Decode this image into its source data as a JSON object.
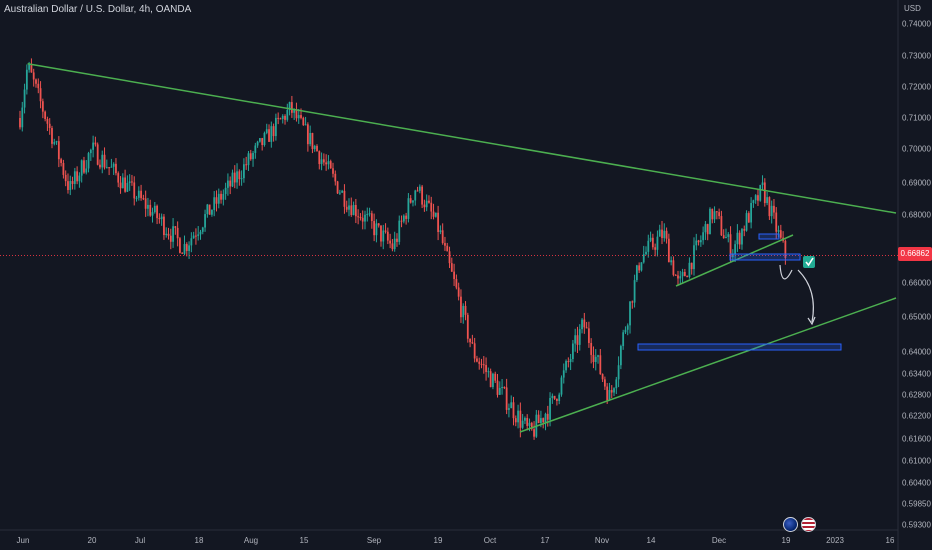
{
  "header": {
    "title": "Australian Dollar / U.S. Dollar, 4h, OANDA",
    "currency": "USD"
  },
  "price_axis": {
    "ticks": [
      "0.74000",
      "0.73000",
      "0.72000",
      "0.71000",
      "0.70000",
      "0.69000",
      "0.68000",
      "0.67000",
      "0.66000",
      "0.65000",
      "0.64000",
      "0.63400",
      "0.62800",
      "0.62200",
      "0.61600",
      "0.61000",
      "0.60400",
      "0.59850",
      "0.59300"
    ],
    "current_price": "0.66862",
    "current_price_color": "#f23645"
  },
  "time_axis": {
    "labels": [
      "Jun",
      "20",
      "Jul",
      "18",
      "Aug",
      "15",
      "Sep",
      "19",
      "Oct",
      "17",
      "Nov",
      "14",
      "Dec",
      "19",
      "2023",
      "16"
    ]
  },
  "drawings": {
    "line_color": "#4caf50",
    "zone_color": "#2962ff",
    "check_color": "#22ab94"
  },
  "icons": {
    "flags": [
      "au-flag-icon",
      "us-flag-icon"
    ]
  },
  "chart_data": {
    "type": "candlestick",
    "symbol": "Australian Dollar / U.S. Dollar",
    "timeframe": "4h",
    "source": "OANDA",
    "ylim": [
      0.59,
      0.745
    ],
    "last_price": 0.66862,
    "key_points": [
      {
        "date": "Jun 01",
        "price": 0.71
      },
      {
        "date": "Jun 03",
        "price": 0.727
      },
      {
        "date": "Jun 14",
        "price": 0.688
      },
      {
        "date": "Jun 20",
        "price": 0.7
      },
      {
        "date": "Jul 14",
        "price": 0.671
      },
      {
        "date": "Aug 11",
        "price": 0.713
      },
      {
        "date": "Aug 26",
        "price": 0.684
      },
      {
        "date": "Sep 07",
        "price": 0.671
      },
      {
        "date": "Sep 13",
        "price": 0.689
      },
      {
        "date": "Sep 19",
        "price": 0.676
      },
      {
        "date": "Sep 28",
        "price": 0.64
      },
      {
        "date": "Oct 13",
        "price": 0.617
      },
      {
        "date": "Oct 19",
        "price": 0.626
      },
      {
        "date": "Oct 27",
        "price": 0.648
      },
      {
        "date": "Nov 03",
        "price": 0.627
      },
      {
        "date": "Nov 11",
        "price": 0.668
      },
      {
        "date": "Nov 17",
        "price": 0.675
      },
      {
        "date": "Nov 21",
        "price": 0.659
      },
      {
        "date": "Nov 30",
        "price": 0.681
      },
      {
        "date": "Dec 05",
        "price": 0.67
      },
      {
        "date": "Dec 13",
        "price": 0.688
      },
      {
        "date": "Dec 19",
        "price": 0.6686
      }
    ],
    "colors": {
      "up": "#26a69a",
      "down": "#ef5350",
      "background": "#131722"
    }
  }
}
